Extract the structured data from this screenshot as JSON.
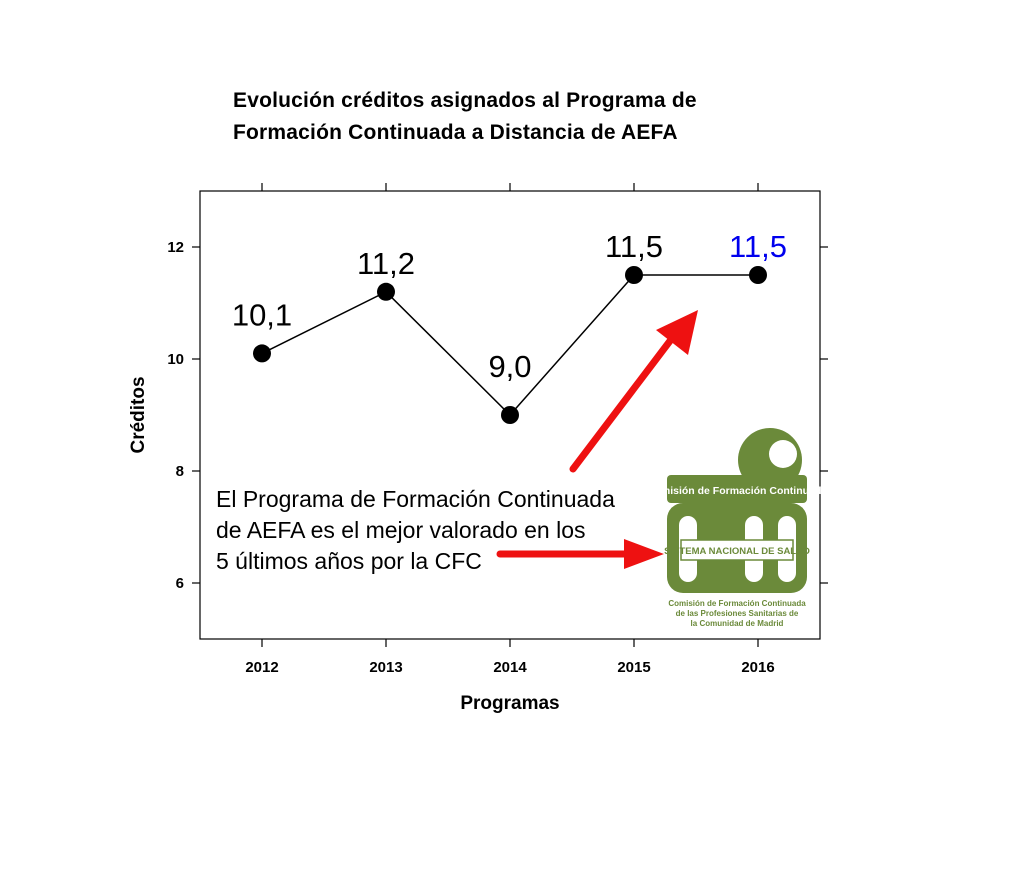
{
  "chart_data": {
    "type": "line",
    "title_lines": [
      "Evolución créditos asignados al Programa de",
      "Formación Continuada a Distancia de AEFA"
    ],
    "xlabel": "Programas",
    "ylabel": "Créditos",
    "categories": [
      "2012",
      "2013",
      "2014",
      "2015",
      "2016"
    ],
    "values": [
      10.1,
      11.2,
      9.0,
      11.5,
      11.5
    ],
    "data_labels": [
      "10,1",
      "11,2",
      "9,0",
      "11,5",
      "11,5"
    ],
    "data_label_colors": [
      "#000000",
      "#000000",
      "#000000",
      "#000000",
      "#0000ee"
    ],
    "yticks": [
      6,
      8,
      10,
      12
    ],
    "ylim": [
      5,
      13
    ],
    "grid": false,
    "line_color": "#000000",
    "marker_color": "#000000",
    "annotation_lines": [
      "El Programa de Formación Continuada",
      "de AEFA es el mejor valorado en los",
      "5 últimos años por la CFC"
    ],
    "arrow_color": "#ee1111"
  },
  "logo": {
    "top_text": "Comisión de Formación Continuada",
    "band_text": "SISTEMA NACIONAL DE SALUD",
    "bottom_lines": [
      "Comisión de Formación  Continuada",
      "de las Profesiones Sanitarias de",
      "la Comunidad de Madrid"
    ],
    "color": "#6b8a3a"
  }
}
